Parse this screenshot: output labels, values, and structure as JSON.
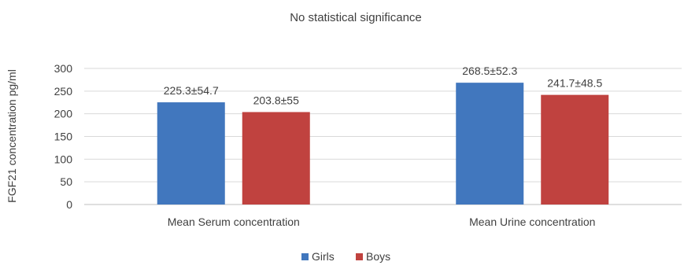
{
  "chart_data": {
    "type": "bar",
    "title": "No statistical significance",
    "xlabel": "",
    "ylabel": "FGF21 concentration pg/ml",
    "ylim": [
      0,
      300
    ],
    "yticks": [
      0,
      50,
      100,
      150,
      200,
      250,
      300
    ],
    "grid": true,
    "legend_position": "bottom",
    "categories": [
      "Mean Serum concentration",
      "Mean Urine concentration"
    ],
    "series": [
      {
        "name": "Girls",
        "color": "#4177BE",
        "values": [
          225.3,
          268.5
        ],
        "labels": [
          "225.3±54.7",
          "268.5±52.3"
        ]
      },
      {
        "name": "Boys",
        "color": "#C0423F",
        "values": [
          203.8,
          241.7
        ],
        "labels": [
          "203.8±55",
          "241.7±48.5"
        ]
      }
    ]
  }
}
